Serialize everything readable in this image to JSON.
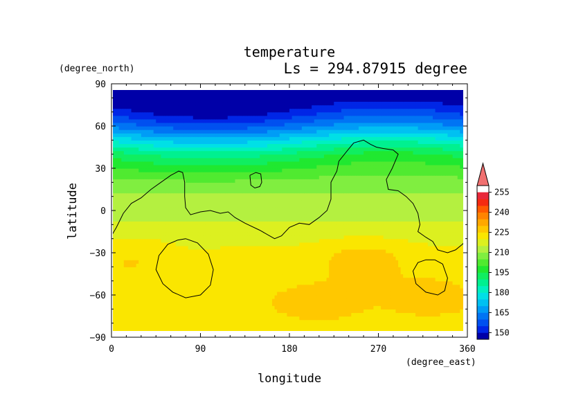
{
  "chart_data": {
    "type": "heatmap",
    "title": "temperature",
    "subtitle": "Ls = 294.87915 degree",
    "xlabel": "longitude",
    "ylabel": "latitude",
    "xunit": "(degree_east)",
    "yunit": "(degree_north)",
    "xlim": [
      0,
      360
    ],
    "ylim": [
      -90,
      90
    ],
    "xticks": [
      0,
      90,
      180,
      270,
      360
    ],
    "yticks": [
      90,
      60,
      30,
      0,
      -30,
      -60,
      -90
    ],
    "colorbar": {
      "levels": [
        255,
        240,
        225,
        210,
        195,
        180,
        165,
        150
      ],
      "bands": [
        {
          "min": 145,
          "color": "#0000a8"
        },
        {
          "min": 150,
          "color": "#0026e6"
        },
        {
          "min": 155,
          "color": "#0050f0"
        },
        {
          "min": 160,
          "color": "#0074f4"
        },
        {
          "min": 165,
          "color": "#009cf6"
        },
        {
          "min": 170,
          "color": "#00c0f2"
        },
        {
          "min": 175,
          "color": "#00e0e6"
        },
        {
          "min": 180,
          "color": "#00f0c0"
        },
        {
          "min": 185,
          "color": "#00f090"
        },
        {
          "min": 190,
          "color": "#10ee60"
        },
        {
          "min": 195,
          "color": "#20e830"
        },
        {
          "min": 200,
          "color": "#50ea30"
        },
        {
          "min": 205,
          "color": "#80ee40"
        },
        {
          "min": 210,
          "color": "#b4f040"
        },
        {
          "min": 215,
          "color": "#dcf020"
        },
        {
          "min": 220,
          "color": "#fae600"
        },
        {
          "min": 225,
          "color": "#ffc800"
        },
        {
          "min": 230,
          "color": "#ffa800"
        },
        {
          "min": 235,
          "color": "#ff8400"
        },
        {
          "min": 240,
          "color": "#ff5a00"
        },
        {
          "min": 245,
          "color": "#f52a10"
        },
        {
          "min": 250,
          "color": "#e8283a"
        },
        {
          "min": 255,
          "color": "#f07070"
        }
      ]
    },
    "field_profile": {
      "lat": [
        -90,
        -80,
        -70,
        -60,
        -50,
        -40,
        -30,
        -20,
        -10,
        0,
        10,
        20,
        30,
        40,
        45,
        50,
        55,
        60,
        65,
        70,
        75,
        80,
        90
      ],
      "temp": [
        222,
        223,
        224,
        224,
        223,
        222,
        221,
        219,
        216,
        213,
        211,
        207,
        200,
        192,
        185,
        178,
        170,
        163,
        157,
        152,
        148,
        147,
        147
      ]
    },
    "features": [
      {
        "lon": 255,
        "lat": -35,
        "amplitude": 7
      },
      {
        "lon": 210,
        "lat": -65,
        "amplitude": 4
      },
      {
        "lon": 320,
        "lat": -60,
        "amplitude": 4
      },
      {
        "lon": 25,
        "lat": -35,
        "amplitude": 4
      },
      {
        "lon": 70,
        "lat": -40,
        "amplitude": -2
      }
    ],
    "contours": [
      {
        "points": [
          [
            0,
            -18
          ],
          [
            5,
            -12
          ],
          [
            12,
            -2
          ],
          [
            20,
            5
          ],
          [
            30,
            9
          ],
          [
            40,
            15
          ],
          [
            50,
            20
          ],
          [
            60,
            25
          ],
          [
            68,
            28
          ],
          [
            72,
            27
          ],
          [
            74,
            20
          ],
          [
            74,
            10
          ],
          [
            75,
            2
          ],
          [
            80,
            -3
          ],
          [
            90,
            -1
          ],
          [
            100,
            0
          ],
          [
            110,
            -2
          ],
          [
            118,
            -1
          ],
          [
            125,
            -5
          ],
          [
            135,
            -9
          ],
          [
            150,
            -14
          ],
          [
            165,
            -20
          ],
          [
            172,
            -18
          ],
          [
            180,
            -12
          ],
          [
            190,
            -9
          ],
          [
            200,
            -10
          ],
          [
            210,
            -5
          ],
          [
            218,
            0
          ],
          [
            222,
            8
          ],
          [
            222,
            20
          ],
          [
            228,
            28
          ],
          [
            230,
            35
          ],
          [
            238,
            42
          ],
          [
            245,
            48
          ],
          [
            255,
            50
          ],
          [
            262,
            47
          ],
          [
            268,
            45
          ],
          [
            275,
            44
          ],
          [
            285,
            43
          ],
          [
            290,
            40
          ],
          [
            284,
            30
          ],
          [
            278,
            22
          ],
          [
            280,
            15
          ],
          [
            290,
            14
          ],
          [
            298,
            10
          ],
          [
            305,
            5
          ],
          [
            310,
            -2
          ],
          [
            312,
            -10
          ],
          [
            310,
            -15
          ],
          [
            318,
            -19
          ],
          [
            325,
            -22
          ],
          [
            330,
            -28
          ],
          [
            340,
            -30
          ],
          [
            348,
            -28
          ],
          [
            355,
            -24
          ],
          [
            360,
            -20
          ]
        ]
      },
      {
        "points": [
          [
            140,
            25
          ],
          [
            146,
            27
          ],
          [
            151,
            26
          ],
          [
            152,
            20
          ],
          [
            150,
            17
          ],
          [
            145,
            16
          ],
          [
            141,
            18
          ],
          [
            140,
            25
          ]
        ]
      },
      {
        "points": [
          [
            75,
            -20
          ],
          [
            87,
            -23
          ],
          [
            98,
            -31
          ],
          [
            103,
            -42
          ],
          [
            100,
            -53
          ],
          [
            90,
            -60
          ],
          [
            75,
            -62
          ],
          [
            62,
            -58
          ],
          [
            52,
            -52
          ],
          [
            45,
            -42
          ],
          [
            48,
            -32
          ],
          [
            57,
            -24
          ],
          [
            67,
            -21
          ],
          [
            75,
            -20
          ]
        ]
      },
      {
        "points": [
          [
            327,
            -35
          ],
          [
            335,
            -38
          ],
          [
            340,
            -48
          ],
          [
            337,
            -57
          ],
          [
            330,
            -60
          ],
          [
            318,
            -58
          ],
          [
            308,
            -52
          ],
          [
            305,
            -43
          ],
          [
            310,
            -37
          ],
          [
            318,
            -35
          ],
          [
            327,
            -35
          ]
        ]
      }
    ]
  }
}
